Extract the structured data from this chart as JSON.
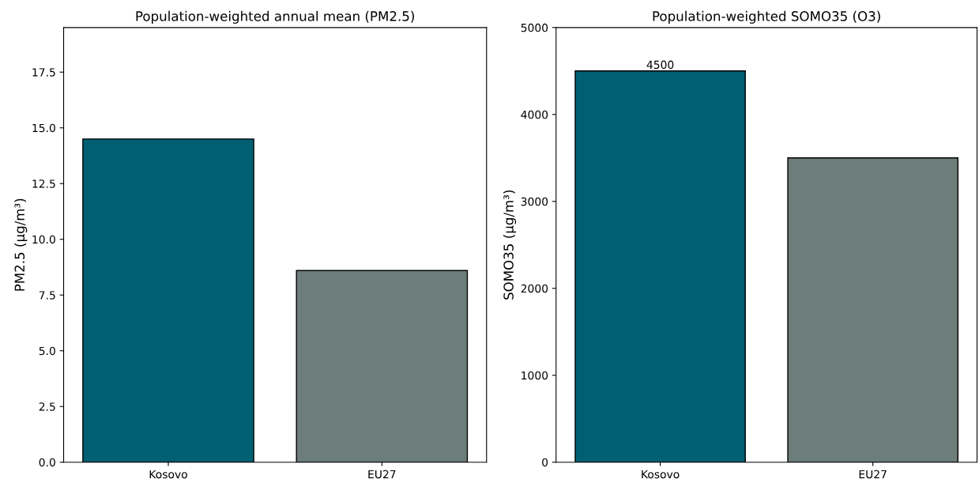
{
  "chart_data": [
    {
      "type": "bar",
      "title": "Population-weighted annual mean (PM2.5)",
      "ylabel": "PM2.5 (µg/m³)",
      "categories": [
        "Kosovo",
        "EU27"
      ],
      "values": [
        14.5,
        8.6
      ],
      "colors": [
        "#005f73",
        "#6c7d7a"
      ],
      "ylim": [
        0,
        19.5
      ],
      "yticks": [
        {
          "value": 0,
          "label": "0.0"
        },
        {
          "value": 2.5,
          "label": "2.5"
        },
        {
          "value": 5,
          "label": "5.0"
        },
        {
          "value": 7.5,
          "label": "7.5"
        },
        {
          "value": 10,
          "label": "10.0"
        },
        {
          "value": 12.5,
          "label": "12.5"
        },
        {
          "value": 15,
          "label": "15.0"
        },
        {
          "value": 17.5,
          "label": "17.5"
        }
      ]
    },
    {
      "type": "bar",
      "title": "Population-weighted SOMO35 (O3)",
      "ylabel": "SOMO35 (µg/m³)",
      "categories": [
        "Kosovo",
        "EU27"
      ],
      "values": [
        4500,
        3500
      ],
      "colors": [
        "#005f73",
        "#6c7d7a"
      ],
      "value_labels": [
        "4500",
        null
      ],
      "ylim": [
        0,
        5000
      ],
      "yticks": [
        0,
        1000,
        2000,
        3000,
        4000,
        5000
      ]
    }
  ]
}
